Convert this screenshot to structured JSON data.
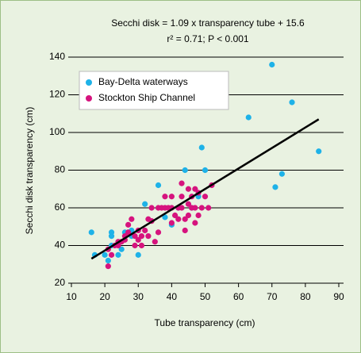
{
  "chart_data": {
    "type": "scatter",
    "title": "Secchi disk = 1.09 x transparency tube + 15.6",
    "subtitle": "r² = 0.71; P < 0.001",
    "x_label": "Tube transparency (cm)",
    "y_label": "Secchi disk transparency (cm)",
    "xlim": [
      10,
      90
    ],
    "ylim": [
      20,
      140
    ],
    "xticks": [
      10,
      20,
      30,
      40,
      50,
      60,
      70,
      80,
      90
    ],
    "yticks": [
      20,
      40,
      60,
      80,
      100,
      120,
      140
    ],
    "grid": true,
    "legend": "upper-left",
    "fit_line": {
      "x": [
        16,
        84
      ],
      "y": [
        33,
        107
      ],
      "color": "#000000"
    },
    "series": [
      {
        "name": "Bay-Delta waterways",
        "color": "#1eb2e8",
        "x": [
          16,
          17,
          20,
          22,
          22,
          21,
          24,
          25,
          26,
          27,
          28,
          30,
          32,
          36,
          38,
          40,
          42,
          44,
          46,
          48,
          49,
          50,
          63,
          70,
          71,
          73,
          76,
          84,
          28,
          22
        ],
        "y": [
          47,
          35,
          35,
          47,
          45,
          32,
          35,
          38,
          47,
          47,
          45,
          35,
          62,
          72,
          55,
          51,
          60,
          80,
          60,
          66,
          92,
          80,
          108,
          136,
          71,
          78,
          116,
          90,
          48,
          40
        ]
      },
      {
        "name": "Stockton Ship Channel",
        "color": "#d6137e",
        "x": [
          21,
          21,
          22,
          23,
          24,
          25,
          26,
          27,
          28,
          27,
          29,
          30,
          30,
          31,
          31,
          32,
          33,
          33,
          34,
          35,
          36,
          36,
          37,
          38,
          38,
          39,
          40,
          40,
          40,
          41,
          42,
          42,
          43,
          43,
          43,
          44,
          44,
          45,
          45,
          45,
          46,
          46,
          47,
          47,
          47,
          48,
          48,
          49,
          50,
          51,
          52,
          34,
          29,
          26,
          24
        ],
        "y": [
          29,
          38,
          35,
          40,
          42,
          42,
          43,
          51,
          54,
          47,
          45,
          48,
          43,
          45,
          40,
          48,
          54,
          45,
          53,
          42,
          47,
          60,
          60,
          60,
          66,
          60,
          52,
          60,
          66,
          56,
          60,
          54,
          73,
          66,
          60,
          54,
          48,
          56,
          62,
          70,
          60,
          66,
          60,
          52,
          70,
          56,
          68,
          60,
          66,
          60,
          72,
          60,
          40,
          45,
          40
        ]
      }
    ]
  }
}
